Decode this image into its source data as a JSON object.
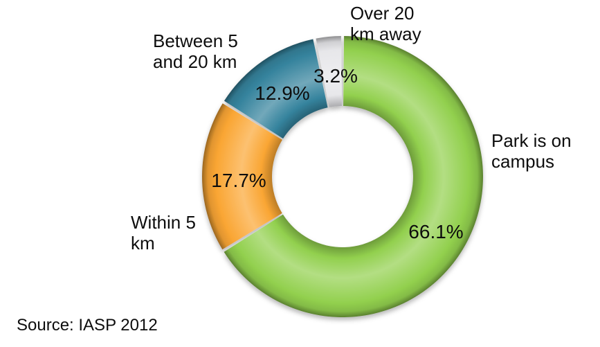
{
  "chart_data": {
    "type": "pie",
    "subtype": "donut",
    "title": "",
    "legend_position": "none",
    "start_angle_deg": 0,
    "direction": "clockwise",
    "donut_hole_ratio": 0.5,
    "background_color": "#FFFFFF",
    "text_color": "#0D0D0D",
    "effect": "3d-bevel",
    "segments": [
      {
        "label": "Park is on campus",
        "label_lines": [
          "Park is on",
          "campus"
        ],
        "value": 66.1,
        "pct_label": "66.1%",
        "color": "#92D04E"
      },
      {
        "label": "Within 5 km",
        "label_lines": [
          "Within 5",
          "km"
        ],
        "value": 17.7,
        "pct_label": "17.7%",
        "color": "#FAA634"
      },
      {
        "label": "Between 5 and 20 km",
        "label_lines": [
          "Between 5",
          "and 20 km"
        ],
        "value": 12.9,
        "pct_label": "12.9%",
        "color": "#35839D"
      },
      {
        "label": "Over 20 km away",
        "label_lines": [
          "Over 20",
          "km away"
        ],
        "value": 3.2,
        "pct_label": "3.2%",
        "color": "#E7E7EA"
      }
    ]
  },
  "source_note": "Source: IASP 2012"
}
